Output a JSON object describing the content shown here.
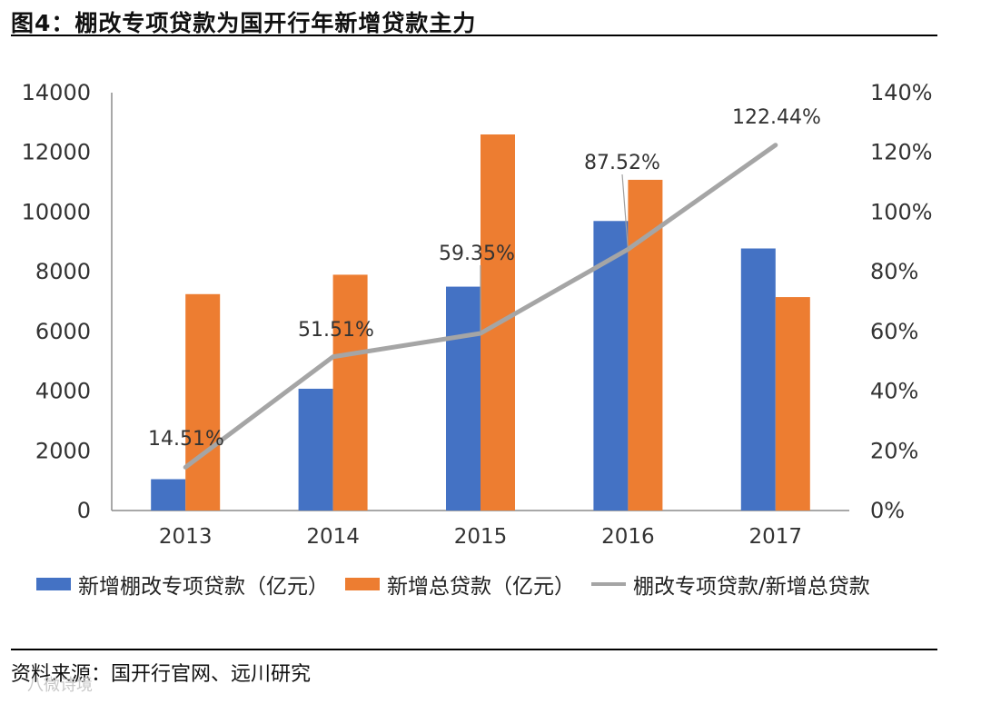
{
  "header": {
    "title": "图4：棚改专项贷款为国开行年新增贷款主力"
  },
  "footer": {
    "source": "资料来源：国开行官网、远川研究",
    "watermark": "八微诗境"
  },
  "colors": {
    "series_1": "#4472C4",
    "series_2": "#ED7D31",
    "series_3": "#A5A5A5"
  },
  "chart_data": {
    "type": "bar",
    "title": "棚改专项贷款为国开行年新增贷款主力",
    "categories": [
      "2013",
      "2014",
      "2015",
      "2016",
      "2017"
    ],
    "series": [
      {
        "name": "新增棚改专项贷款（亿元）",
        "type": "bar",
        "axis": "left",
        "values": [
          1050,
          4080,
          7500,
          9700,
          8780
        ]
      },
      {
        "name": "新增总贷款（亿元）",
        "type": "bar",
        "axis": "left",
        "values": [
          7250,
          7900,
          12600,
          11080,
          7150
        ]
      },
      {
        "name": "棚改专项贷款/新增总贷款",
        "type": "line",
        "axis": "right",
        "values": [
          14.51,
          51.51,
          59.35,
          87.52,
          122.44
        ],
        "labels": [
          "14.51%",
          "51.51%",
          "59.35%",
          "87.52%",
          "122.44%"
        ]
      }
    ],
    "ylim": [
      0,
      14000
    ],
    "yticks": [
      "0",
      "2000",
      "4000",
      "6000",
      "8000",
      "10000",
      "12000",
      "14000"
    ],
    "y2lim": [
      0,
      140
    ],
    "y2ticks": [
      "0%",
      "20%",
      "40%",
      "60%",
      "80%",
      "100%",
      "120%",
      "140%"
    ],
    "xlabel": "",
    "ylabel": "",
    "grid": false,
    "legend_position": "bottom"
  }
}
